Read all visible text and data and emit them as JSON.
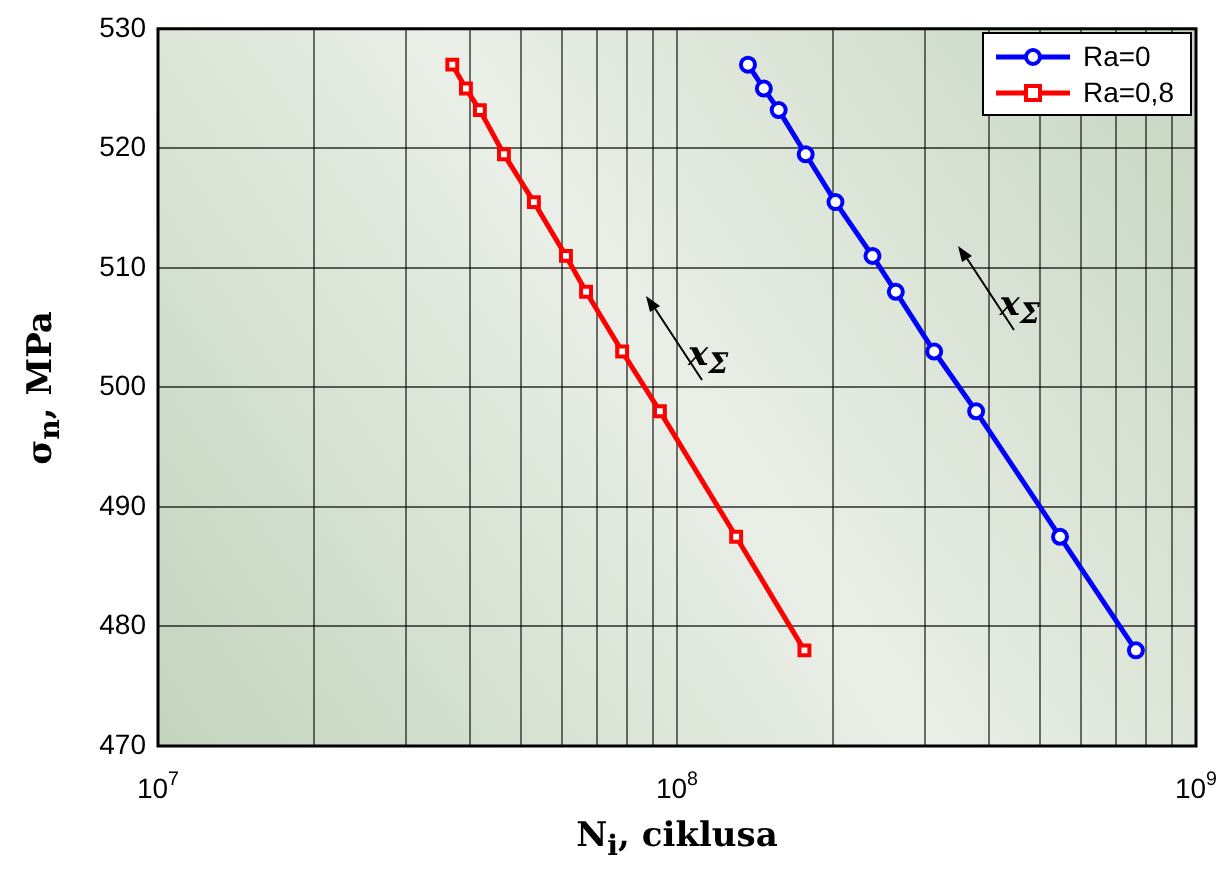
{
  "chart_data": {
    "type": "line",
    "xlabel": "N$_{i}$, ciklusa",
    "ylabel": "σ$_{n}$, MPa",
    "xlim": [
      10000000,
      1000000000
    ],
    "xticks": [
      {
        "value": 10000000,
        "label": "10$^{7}$"
      },
      {
        "value": 20000000,
        "label": null
      },
      {
        "value": 30000000,
        "label": null
      },
      {
        "value": 40000000,
        "label": null
      },
      {
        "value": 50000000,
        "label": null
      },
      {
        "value": 60000000,
        "label": null
      },
      {
        "value": 70000000,
        "label": null
      },
      {
        "value": 80000000,
        "label": null
      },
      {
        "value": 90000000,
        "label": null
      },
      {
        "value": 100000000,
        "label": "10$^{8}$"
      },
      {
        "value": 200000000,
        "label": null
      },
      {
        "value": 300000000,
        "label": null
      },
      {
        "value": 400000000,
        "label": null
      },
      {
        "value": 500000000,
        "label": null
      },
      {
        "value": 600000000,
        "label": null
      },
      {
        "value": 700000000,
        "label": null
      },
      {
        "value": 800000000,
        "label": null
      },
      {
        "value": 900000000,
        "label": null
      },
      {
        "value": 1000000000,
        "label": "10$^{9}$"
      }
    ],
    "ylim": [
      470,
      530
    ],
    "yticks": [
      470,
      480,
      490,
      500,
      510,
      520,
      530
    ],
    "log": "x",
    "grid": true,
    "legend": "top right",
    "series": [
      {
        "name": "Ra=0",
        "color": "#0000ff",
        "marker": "circle",
        "x": [
          137000000,
          147000000,
          157000000,
          177000000,
          202000000,
          238000000,
          264000000,
          313000000,
          377000000,
          547000000,
          766000000
        ],
        "values": [
          527,
          525,
          523.2,
          519.5,
          515.5,
          511,
          508,
          503,
          498,
          487.5,
          478
        ]
      },
      {
        "name": "Ra=0,8",
        "color": "#ff0000",
        "marker": "square",
        "x": [
          36900000,
          39200000,
          41700000,
          46400000,
          53000000,
          61100000,
          66800000,
          78400000,
          92700000,
          130000000,
          176000000
        ],
        "values": [
          527,
          525,
          523.2,
          519.5,
          515.5,
          511,
          508,
          503,
          498,
          487.5,
          478
        ]
      }
    ],
    "annotations": [
      "x$_{Σ}$",
      "x$_{Σ}$"
    ]
  }
}
